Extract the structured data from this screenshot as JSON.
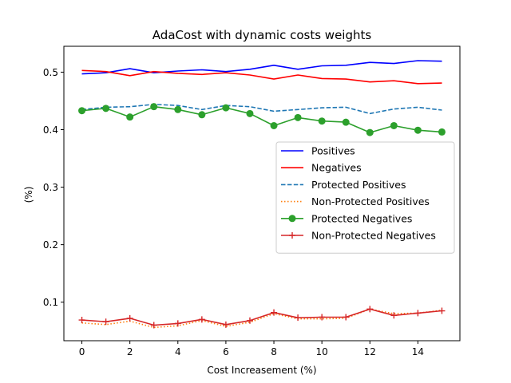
{
  "chart_data": {
    "type": "line",
    "title": "AdaCost with dynamic costs weights",
    "xlabel": "Cost Increasement (%)",
    "ylabel": "(%)",
    "xlim": [
      -0.75,
      15.75
    ],
    "ylim": [
      0.033,
      0.545
    ],
    "xticks": [
      0,
      2,
      4,
      6,
      8,
      10,
      12,
      14
    ],
    "yticks": [
      0.1,
      0.2,
      0.3,
      0.4,
      0.5
    ],
    "grid": false,
    "legend_position": "center-right",
    "x": [
      0,
      1,
      2,
      3,
      4,
      5,
      6,
      7,
      8,
      9,
      10,
      11,
      12,
      13,
      14,
      15
    ],
    "series": [
      {
        "name": "Positives",
        "color": "#0000ff",
        "style": "solid",
        "marker": "none",
        "values": [
          0.497,
          0.499,
          0.506,
          0.499,
          0.502,
          0.504,
          0.501,
          0.505,
          0.512,
          0.505,
          0.511,
          0.512,
          0.517,
          0.515,
          0.52,
          0.519
        ]
      },
      {
        "name": "Negatives",
        "color": "#ff0000",
        "style": "solid",
        "marker": "none",
        "values": [
          0.503,
          0.501,
          0.494,
          0.501,
          0.498,
          0.496,
          0.499,
          0.495,
          0.488,
          0.495,
          0.489,
          0.488,
          0.483,
          0.485,
          0.48,
          0.481
        ]
      },
      {
        "name": "Protected Positives",
        "color": "#1f77b4",
        "style": "dashed",
        "marker": "none",
        "values": [
          0.435,
          0.439,
          0.44,
          0.444,
          0.442,
          0.435,
          0.442,
          0.44,
          0.432,
          0.435,
          0.438,
          0.439,
          0.428,
          0.436,
          0.439,
          0.434
        ]
      },
      {
        "name": "Non-Protected Positives",
        "color": "#ff7f0e",
        "style": "dotted",
        "marker": "none",
        "values": [
          0.064,
          0.061,
          0.067,
          0.056,
          0.059,
          0.068,
          0.058,
          0.065,
          0.08,
          0.071,
          0.071,
          0.072,
          0.088,
          0.08,
          0.081,
          0.086
        ]
      },
      {
        "name": "Protected Negatives",
        "color": "#2ca02c",
        "style": "solid",
        "marker": "circle",
        "values": [
          0.433,
          0.437,
          0.422,
          0.44,
          0.435,
          0.426,
          0.438,
          0.428,
          0.407,
          0.421,
          0.415,
          0.413,
          0.395,
          0.407,
          0.399,
          0.396
        ]
      },
      {
        "name": "Non-Protected Negatives",
        "color": "#d62728",
        "style": "solid",
        "marker": "plus",
        "values": [
          0.069,
          0.066,
          0.072,
          0.06,
          0.063,
          0.07,
          0.061,
          0.068,
          0.082,
          0.073,
          0.074,
          0.074,
          0.088,
          0.077,
          0.081,
          0.085
        ]
      }
    ]
  }
}
